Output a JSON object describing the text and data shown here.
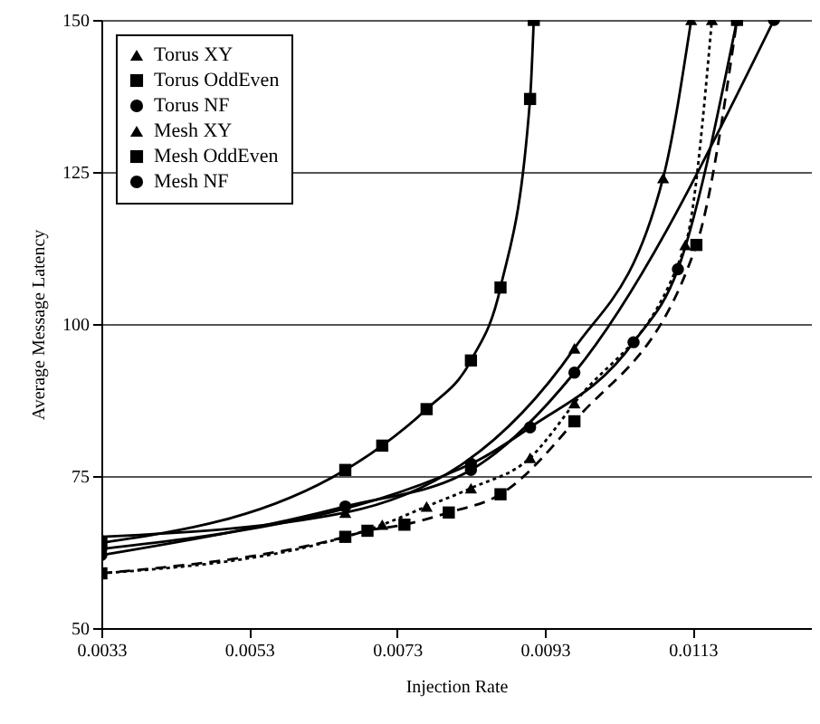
{
  "chart_data": {
    "type": "line",
    "xlabel": "Injection Rate",
    "ylabel": "Average Message Latency",
    "xlim": [
      0.0033,
      0.0129
    ],
    "ylim": [
      50,
      150
    ],
    "xticks": [
      0.0033,
      0.0053,
      0.0073,
      0.0093,
      0.0113
    ],
    "yticks": [
      50,
      75,
      100,
      125,
      150
    ],
    "grid": "y",
    "legend": "top left",
    "series": [
      {
        "name": "Torus XY",
        "color": "#000000",
        "marker": "triangle",
        "line_style": "dotted",
        "x": [
          0.0033,
          0.0066,
          0.0071,
          0.0077,
          0.0083,
          0.0091,
          0.0097,
          0.0112,
          0.01156
        ],
        "values": [
          59,
          65,
          67,
          70,
          73,
          78,
          87,
          113,
          150
        ]
      },
      {
        "name": "Torus OddEven",
        "color": "#000000",
        "marker": "square",
        "line_style": "dashed",
        "x": [
          0.0033,
          0.0066,
          0.0069,
          0.0074,
          0.008,
          0.0087,
          0.0097,
          0.01135,
          0.0119
        ],
        "values": [
          59,
          65,
          66,
          67,
          69,
          72,
          84,
          113,
          150
        ]
      },
      {
        "name": "Torus NF",
        "color": "#000000",
        "marker": "circle",
        "line_style": "solid",
        "x": [
          0.0033,
          0.0066,
          0.0083,
          0.0097,
          0.0124
        ],
        "values": [
          62,
          70,
          76,
          92,
          150
        ]
      },
      {
        "name": "Mesh XY",
        "color": "#000000",
        "marker": "triangle",
        "line_style": "solid",
        "x": [
          0.0033,
          0.0066,
          0.0097,
          0.0109,
          0.01128
        ],
        "values": [
          65,
          69,
          96,
          124,
          150
        ]
      },
      {
        "name": "Mesh OddEven",
        "color": "#000000",
        "marker": "square",
        "line_style": "solid",
        "x": [
          0.0033,
          0.0066,
          0.0071,
          0.0077,
          0.0083,
          0.0087,
          0.0091,
          0.00915
        ],
        "values": [
          64,
          76,
          80,
          86,
          94,
          106,
          137,
          150
        ]
      },
      {
        "name": "Mesh NF",
        "color": "#000000",
        "marker": "circle",
        "line_style": "solid",
        "x": [
          0.0033,
          0.0083,
          0.0091,
          0.0105,
          0.0111,
          0.0119
        ],
        "values": [
          63,
          77,
          83,
          97,
          109,
          150
        ]
      }
    ]
  }
}
